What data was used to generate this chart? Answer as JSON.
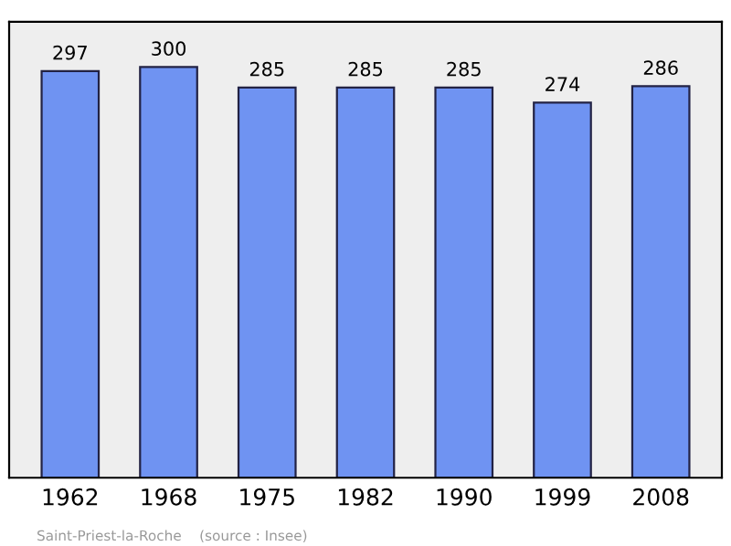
{
  "chart_data": {
    "type": "bar",
    "categories": [
      "1962",
      "1968",
      "1975",
      "1982",
      "1990",
      "1999",
      "2008"
    ],
    "values": [
      297,
      300,
      285,
      285,
      285,
      274,
      286
    ],
    "color": "#6f93f2",
    "data_labels": true,
    "annotations": [
      "Saint-Priest-la-Roche    (source : Insee)"
    ]
  }
}
